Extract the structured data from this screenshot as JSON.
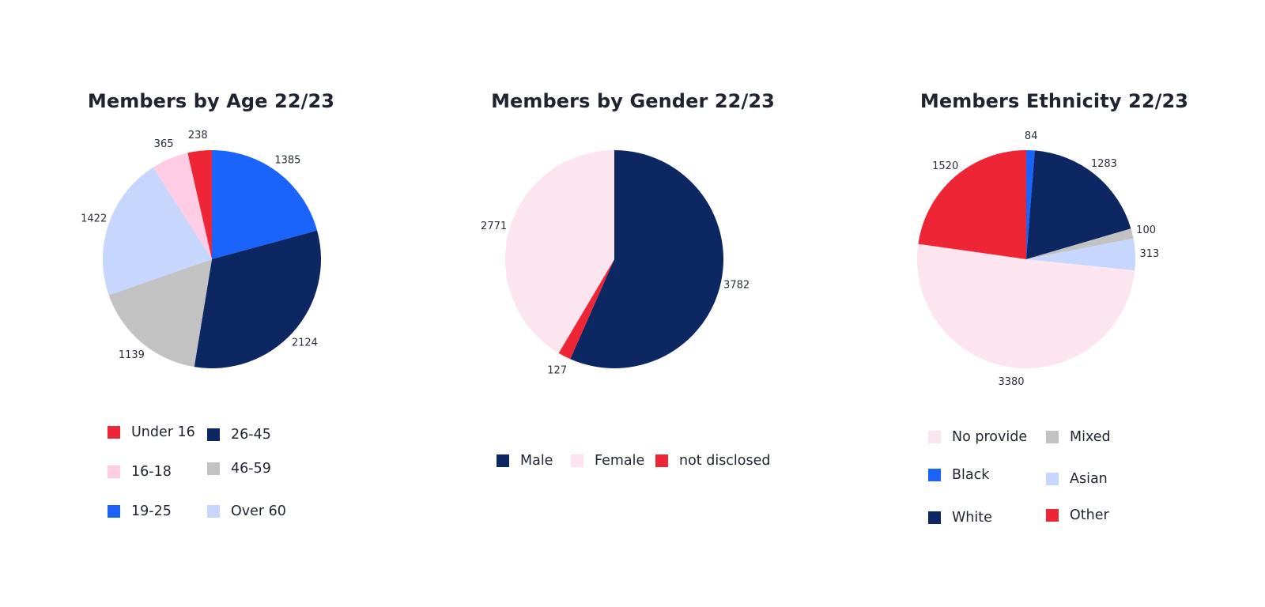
{
  "charts": [
    {
      "title": "Members by Age 22/23",
      "chart_data": {
        "type": "pie",
        "title": "Members by Age 22/23",
        "categories": [
          "Under 16",
          "26-45",
          "16-18",
          "46-59",
          "19-25",
          "Over 60"
        ],
        "slice_order": [
          "19-25",
          "26-45",
          "46-59",
          "Over 60",
          "16-18",
          "Under 16"
        ],
        "values": {
          "Under 16": 238,
          "16-18": 365,
          "19-25": 1385,
          "26-45": 2124,
          "46-59": 1139,
          "Over 60": 1422
        },
        "colors": {
          "Under 16": "#ee2535",
          "16-18": "#ffcde3",
          "19-25": "#1a63fb",
          "26-45": "#0c2761",
          "46-59": "#c2c2c2",
          "Over 60": "#c6d6fd"
        },
        "legend": [
          "Under 16",
          "26-45",
          "16-18",
          "46-59",
          "19-25",
          "Over 60"
        ]
      }
    },
    {
      "title": "Members by Gender 22/23",
      "chart_data": {
        "type": "pie",
        "title": "Members by Gender 22/23",
        "categories": [
          "Male",
          "Female",
          "not disclosed"
        ],
        "slice_order": [
          "Male",
          "not disclosed",
          "Female"
        ],
        "values": {
          "Male": 3782,
          "Female": 2771,
          "not disclosed": 127
        },
        "colors": {
          "Male": "#0c2761",
          "Female": "#fde5f0",
          "not disclosed": "#ee2535"
        },
        "legend": [
          "Male",
          "Female",
          "not disclosed"
        ]
      }
    },
    {
      "title": "Members Ethnicity 22/23",
      "chart_data": {
        "type": "pie",
        "title": "Members Ethnicity 22/23",
        "categories": [
          "No provide",
          "Mixed",
          "Black",
          "Asian",
          "White",
          "Other"
        ],
        "slice_order": [
          "Black",
          "White",
          "Mixed",
          "Asian",
          "No provide",
          "Other"
        ],
        "values": {
          "No provide": 3380,
          "Mixed": 100,
          "Black": 84,
          "Asian": 313,
          "White": 1283,
          "Other": 1520
        },
        "colors": {
          "No provide": "#fde5f0",
          "Mixed": "#c2c2c2",
          "Black": "#1a63fb",
          "Asian": "#c6d6fd",
          "White": "#0c2761",
          "Other": "#ee2535"
        },
        "legend": [
          "No provide",
          "Mixed",
          "Black",
          "Asian",
          "White",
          "Other"
        ]
      }
    }
  ]
}
